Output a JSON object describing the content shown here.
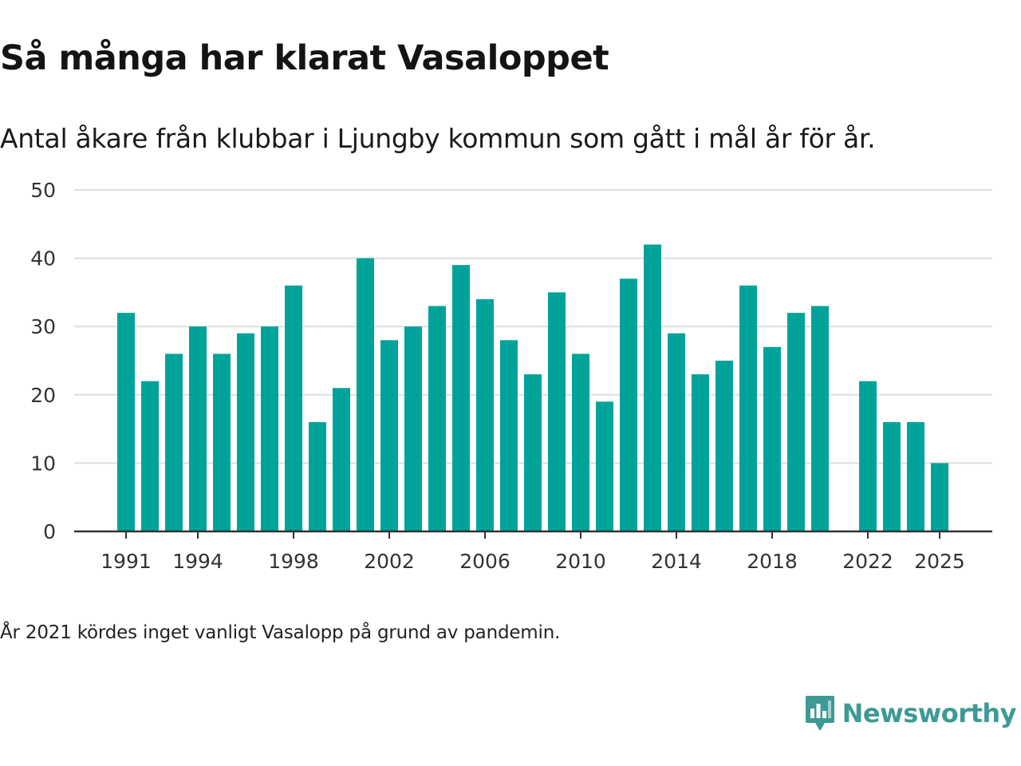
{
  "brand": {
    "name": "Newsworthy",
    "color": "#3d9a94"
  },
  "footnote": "År 2021 kördes inget vanligt Vasalopp på grund av pandemin.",
  "chart_data": {
    "type": "bar",
    "title": "Så många har klarat Vasaloppet",
    "subtitle": "Antal åkare från klubbar i Ljungby kommun som gått i mål år för år.",
    "xlabel": "",
    "ylabel": "",
    "ylim": [
      0,
      50
    ],
    "yticks": [
      0,
      10,
      20,
      30,
      40,
      50
    ],
    "xticks": [
      1991,
      1994,
      1998,
      2002,
      2006,
      2010,
      2014,
      2018,
      2022,
      2025
    ],
    "grid": true,
    "bar_color": "#00a39a",
    "categories": [
      1991,
      1992,
      1993,
      1994,
      1995,
      1996,
      1997,
      1998,
      1999,
      2000,
      2001,
      2002,
      2003,
      2004,
      2005,
      2006,
      2007,
      2008,
      2009,
      2010,
      2011,
      2012,
      2013,
      2014,
      2015,
      2016,
      2017,
      2018,
      2019,
      2020,
      2021,
      2022,
      2023,
      2024,
      2025
    ],
    "values": [
      32,
      22,
      26,
      30,
      26,
      29,
      30,
      36,
      16,
      21,
      40,
      28,
      30,
      33,
      39,
      34,
      28,
      23,
      35,
      26,
      19,
      37,
      42,
      29,
      23,
      25,
      36,
      27,
      32,
      33,
      null,
      22,
      16,
      16,
      10
    ]
  }
}
